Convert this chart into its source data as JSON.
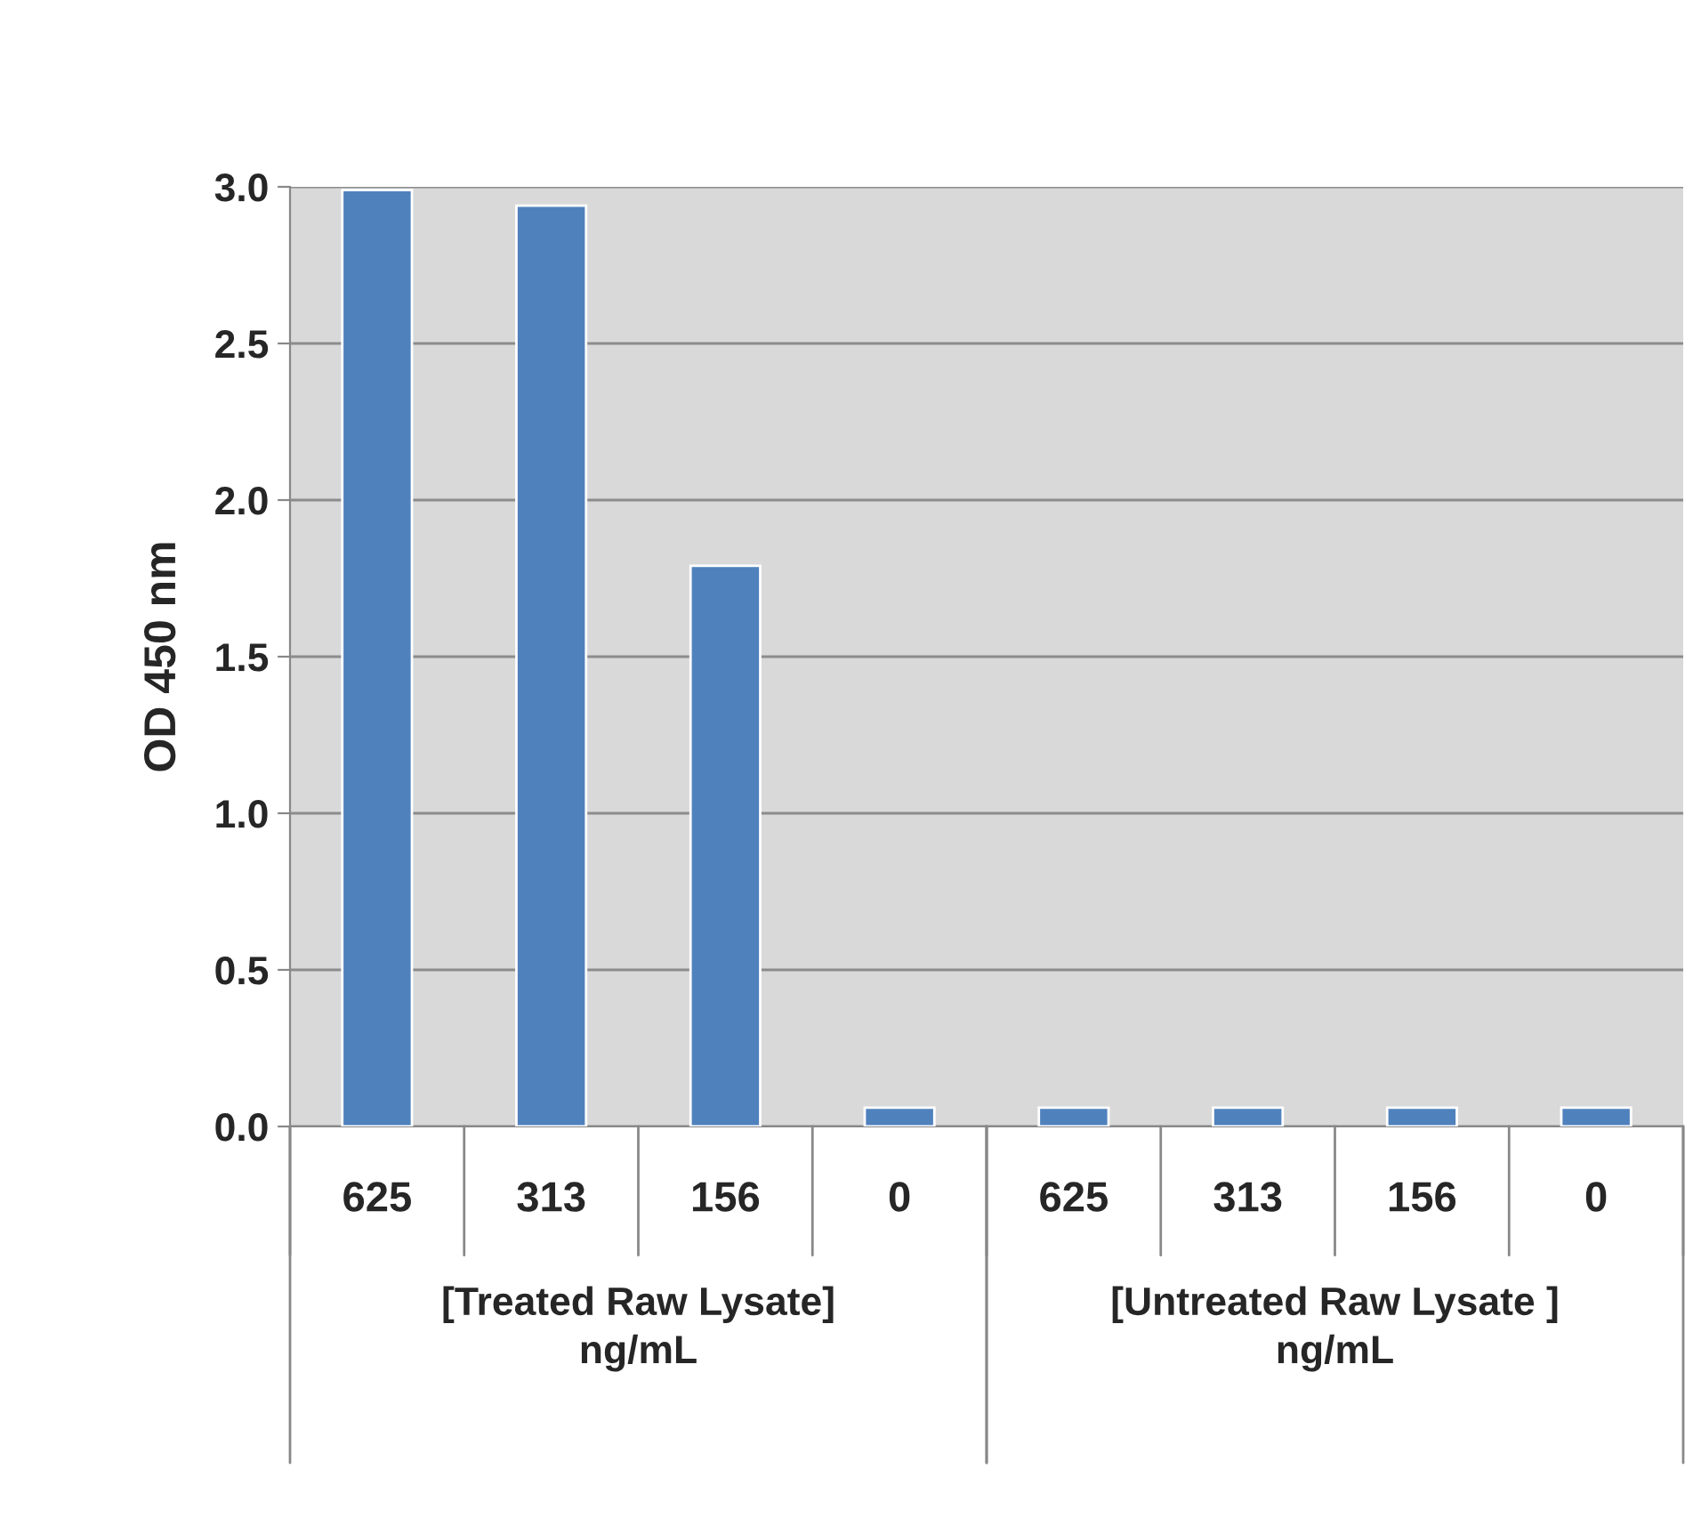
{
  "chart_data": {
    "type": "bar",
    "ylabel": "OD 450 nm",
    "categories": [
      "625",
      "313",
      "156",
      "0",
      "625",
      "313",
      "156",
      "0"
    ],
    "values": [
      2.99,
      2.94,
      1.79,
      0.06,
      0.06,
      0.06,
      0.06,
      0.06
    ],
    "color": "#4f81bd",
    "ylim": [
      0,
      3
    ],
    "yticks": [
      {
        "value": 0,
        "label": "0.0"
      },
      {
        "value": 0.5,
        "label": "0.5"
      },
      {
        "value": 1,
        "label": "1.0"
      },
      {
        "value": 1.5,
        "label": "1.5"
      },
      {
        "value": 2,
        "label": "2.0"
      },
      {
        "value": 2.5,
        "label": "2.5"
      },
      {
        "value": 3,
        "label": "3.0"
      }
    ],
    "grid": "y",
    "annotations": [
      "[Treated Raw Lysate]\nng/mL",
      "[Untreated Raw Lysate ]\nng/mL"
    ]
  }
}
